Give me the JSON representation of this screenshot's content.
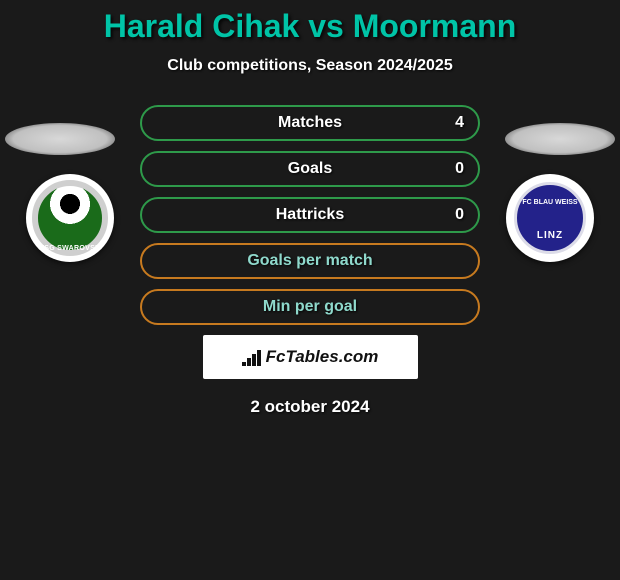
{
  "title": "Harald Cihak vs Moormann",
  "subtitle": "Club competitions, Season 2024/2025",
  "date": "2 october 2024",
  "colors": {
    "accent": "#00c4a7",
    "row_border_green": "#2e9a4a",
    "row_border_orange": "#c77a1f",
    "text_white": "#ffffff",
    "text_teal": "#8fd9cc",
    "background": "#1a1a1a",
    "pad_grey": "#d0d0d0",
    "logo_left_green": "#1a6b1a",
    "logo_right_blue": "#23228a"
  },
  "left_club": {
    "name": "WSG Swarovski Wattens",
    "short": "WSG SWAROVSKI"
  },
  "right_club": {
    "name": "FC Blau-Weiss Linz",
    "top": "FC BLAU WEISS",
    "bottom": "LINZ"
  },
  "stats": [
    {
      "label": "Matches",
      "right_value": "4",
      "border_color": "#2e9a4a",
      "label_color": "#ffffff"
    },
    {
      "label": "Goals",
      "right_value": "0",
      "border_color": "#2e9a4a",
      "label_color": "#ffffff"
    },
    {
      "label": "Hattricks",
      "right_value": "0",
      "border_color": "#2e9a4a",
      "label_color": "#ffffff"
    },
    {
      "label": "Goals per match",
      "right_value": "",
      "border_color": "#c77a1f",
      "label_color": "#8fd9cc"
    },
    {
      "label": "Min per goal",
      "right_value": "",
      "border_color": "#c77a1f",
      "label_color": "#8fd9cc"
    }
  ],
  "branding": {
    "text": "FcTables.com",
    "bars": [
      4,
      8,
      12,
      16
    ]
  }
}
